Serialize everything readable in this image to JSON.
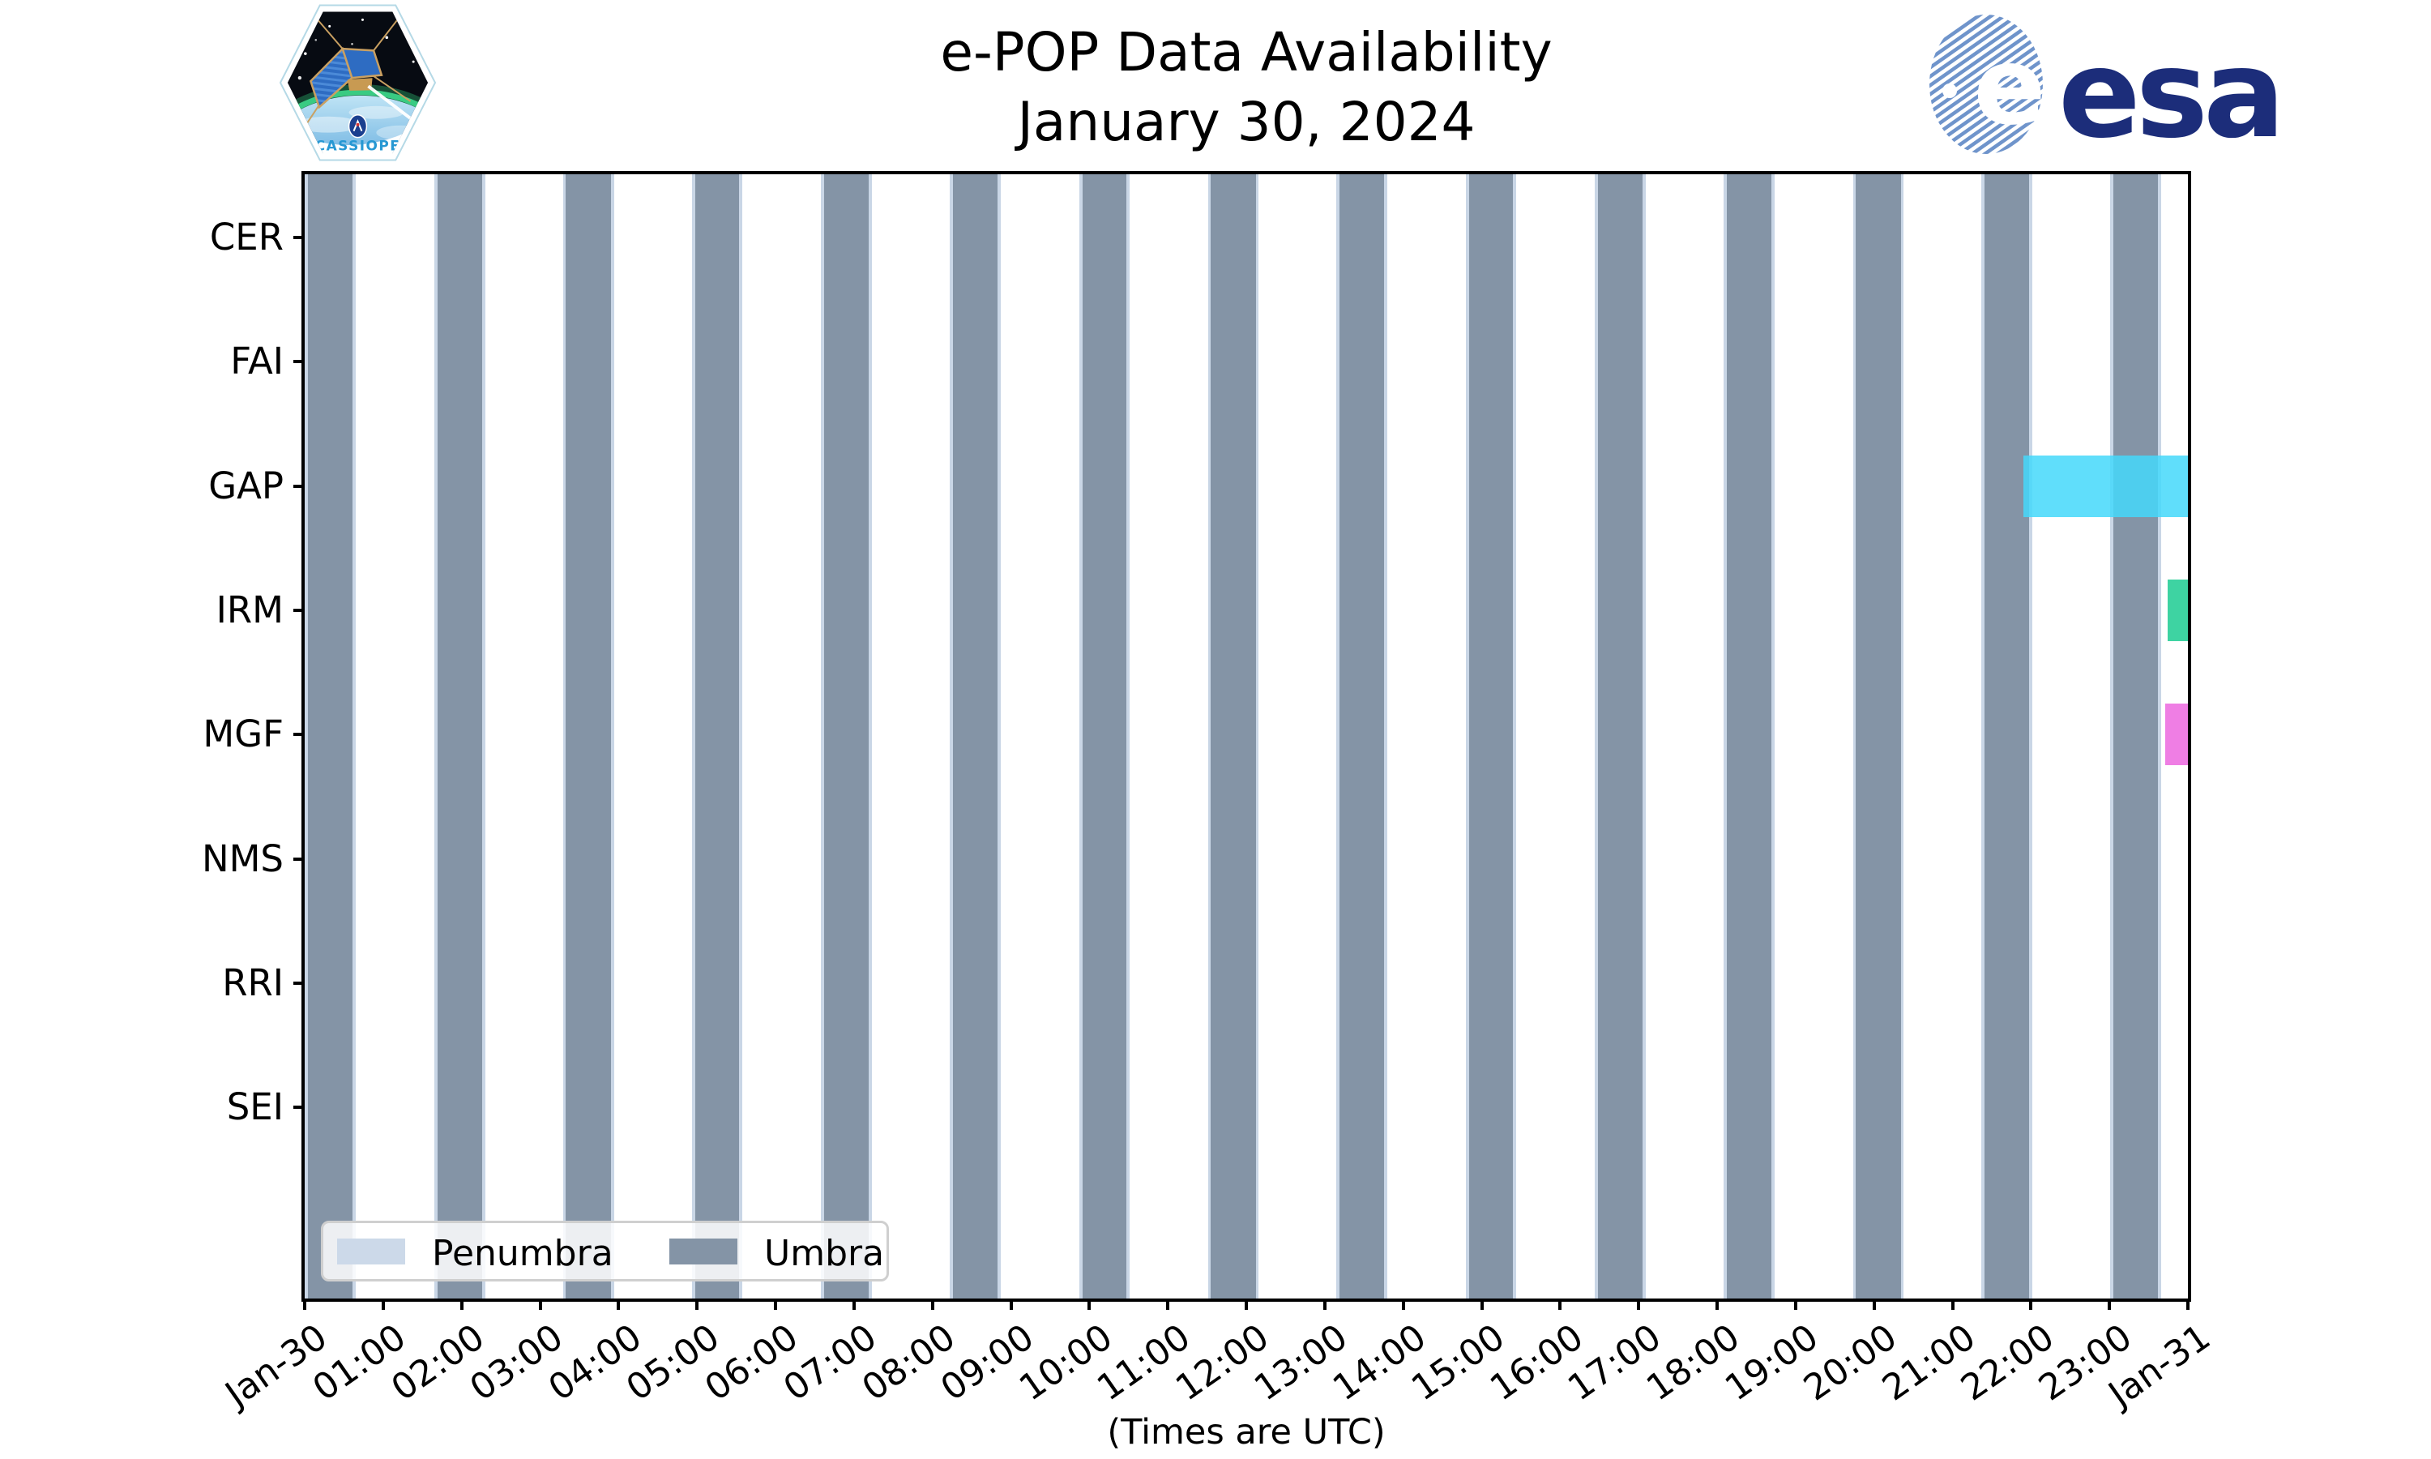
{
  "branding": {
    "cassiope_label": "CASSIOPE",
    "esa_label": "esa"
  },
  "chart_data": {
    "type": "timeline",
    "title": "e-POP Data Availability",
    "subtitle": "January 30, 2024",
    "xlabel": "(Times are UTC)",
    "rows": [
      "CER",
      "FAI",
      "GAP",
      "IRM",
      "MGF",
      "NMS",
      "RRI",
      "SEI"
    ],
    "x_ticks": [
      "Jan-30",
      "01:00",
      "02:00",
      "03:00",
      "04:00",
      "05:00",
      "06:00",
      "07:00",
      "08:00",
      "09:00",
      "10:00",
      "11:00",
      "12:00",
      "13:00",
      "14:00",
      "15:00",
      "16:00",
      "17:00",
      "18:00",
      "19:00",
      "20:00",
      "21:00",
      "22:00",
      "23:00",
      "Jan-31"
    ],
    "x_range_hours": [
      0,
      24
    ],
    "grid": false,
    "legend_position": "lower-left",
    "legend": [
      {
        "label": "Penumbra",
        "color": "#ccd9e9"
      },
      {
        "label": "Umbra",
        "color": "#8494a6"
      }
    ],
    "colors": {
      "umbra": "#8494a6",
      "penumbra": "#c9d6e6",
      "gap_bar": "rgba(68,216,250,0.85)",
      "irm_bar": "#3ed3a2",
      "mgf_bar": "#ef7ee4",
      "axis": "#000000",
      "esa_blue": "#1c2d7a",
      "cassiope_blue": "#2798d3"
    },
    "umbra_intervals_hours": [
      [
        0.04,
        0.61
      ],
      [
        1.69,
        2.26
      ],
      [
        3.33,
        3.9
      ],
      [
        4.98,
        5.54
      ],
      [
        6.62,
        7.19
      ],
      [
        8.26,
        8.83
      ],
      [
        9.91,
        10.47
      ],
      [
        11.55,
        12.12
      ],
      [
        13.19,
        13.76
      ],
      [
        14.84,
        15.4
      ],
      [
        16.48,
        17.05
      ],
      [
        18.12,
        18.69
      ],
      [
        19.77,
        20.34
      ],
      [
        21.41,
        21.98
      ],
      [
        23.05,
        23.62
      ]
    ],
    "penumbra_edge_width_hours": 0.04,
    "instrument_bars": [
      {
        "row": "GAP",
        "start_hour": 21.9,
        "end_hour": 24.0,
        "color": "rgba(68,216,250,0.85)"
      },
      {
        "row": "IRM",
        "start_hour": 23.74,
        "end_hour": 24.0,
        "color": "#3ed3a2"
      },
      {
        "row": "MGF",
        "start_hour": 23.71,
        "end_hour": 24.0,
        "color": "#ef7ee4"
      }
    ]
  }
}
